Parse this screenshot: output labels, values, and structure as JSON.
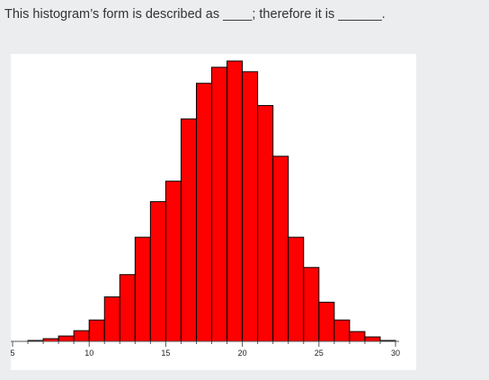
{
  "question": {
    "text": "This histogram’s form is described as ____; therefore it is ______."
  },
  "chart_data": {
    "type": "bar",
    "title": "",
    "xlabel": "",
    "ylabel": "",
    "bar_color": "#ff0000",
    "edge_color": "#000000",
    "bin_width": 1,
    "first_bin_start": 6,
    "x_ticks": [
      5,
      10,
      15,
      20,
      25,
      30
    ],
    "xlim": [
      5,
      30
    ],
    "ylim": [
      0,
      320
    ],
    "values": [
      1,
      3,
      6,
      12,
      24,
      50,
      75,
      117,
      157,
      180,
      250,
      290,
      308,
      315,
      303,
      265,
      208,
      117,
      83,
      44,
      24,
      11,
      5,
      1
    ]
  }
}
